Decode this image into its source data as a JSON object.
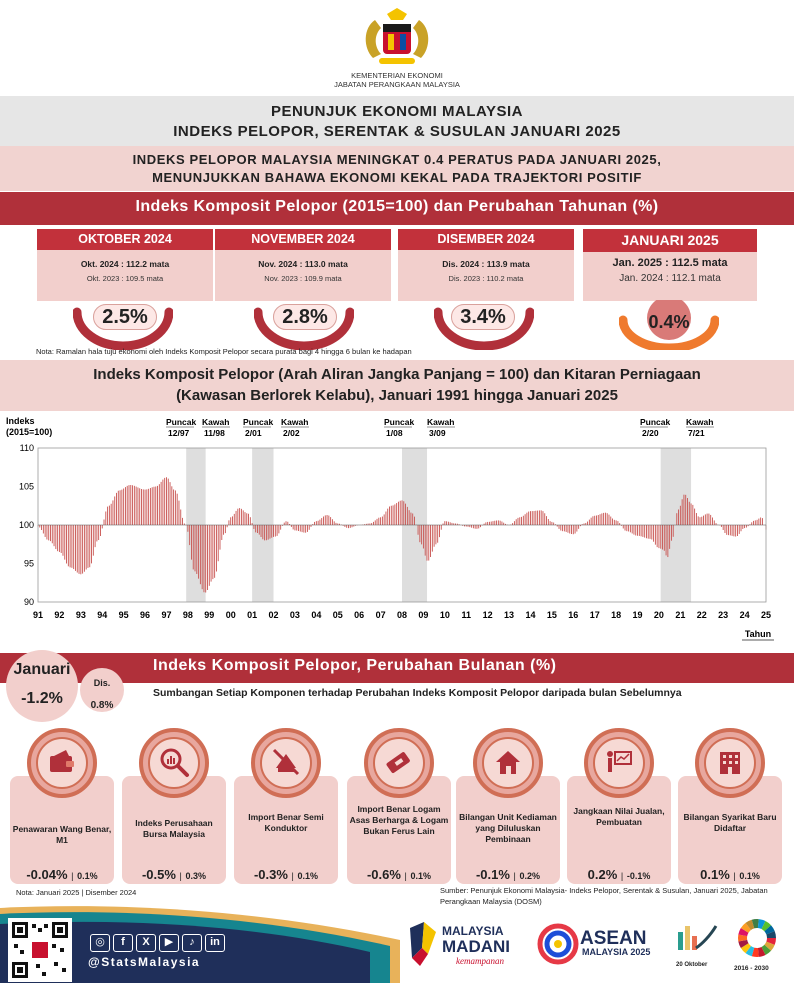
{
  "header": {
    "ministry_line1": "KEMENTERIAN EKONOMI",
    "ministry_line2": "JABATAN PERANGKAAN MALAYSIA",
    "title_line1": "PENUNJUK EKONOMI MALAYSIA",
    "title_line2": "INDEKS PELOPOR, SERENTAK & SUSULAN JANUARI 2025",
    "headline_line1": "INDEKS PELOPOR MALAYSIA MENINGKAT 0.4 PERATUS PADA JANUARI 2025,",
    "headline_line2": "MENUNJUKKAN BAHAWA EKONOMI KEKAL PADA TRAJEKTORI POSITIF",
    "section_title": "Indeks Komposit Pelopor (2015=100) dan Perubahan Tahunan (%)"
  },
  "months": [
    {
      "name": "OKTOBER 2024",
      "line1": "Okt. 2024 : 112.2 mata",
      "line2": "Okt. 2023 : 109.5 mata",
      "pct": "2.5%"
    },
    {
      "name": "NOVEMBER 2024",
      "line1": "Nov. 2024 : 113.0 mata",
      "line2": "Nov. 2023 : 109.9 mata",
      "pct": "2.8%"
    },
    {
      "name": "DISEMBER 2024",
      "line1": "Dis. 2024 : 113.9 mata",
      "line2": "Dis. 2023 : 110.2 mata",
      "pct": "3.4%"
    },
    {
      "name": "JANUARI 2025",
      "line1": "Jan. 2025 : 112.5 mata",
      "line2": "Jan. 2024 : 112.1 mata",
      "pct": "0.4%"
    }
  ],
  "note_forecast": "Nota: Ramalan hala tuju ekonomi oleh Indeks Komposit Pelopor secara purata bagi 4 hingga 6 bulan ke hadapan",
  "chart_title_line1": "Indeks Komposit Pelopor (Arah Aliran Jangka Panjang = 100) dan Kitaran Perniagaan",
  "chart_title_line2": "(Kawasan Berlorek Kelabu), Januari 1991 hingga Januari 2025",
  "chart_data": {
    "type": "bar",
    "ylabel": "Indeks (2015=100)",
    "xlabel": "Tahun",
    "ylim": [
      90,
      110
    ],
    "baseline": 100,
    "yticks": [
      90,
      95,
      100,
      105,
      110
    ],
    "xticks": [
      "91",
      "92",
      "93",
      "94",
      "95",
      "96",
      "97",
      "98",
      "99",
      "00",
      "01",
      "02",
      "03",
      "04",
      "05",
      "06",
      "07",
      "08",
      "09",
      "10",
      "11",
      "12",
      "13",
      "14",
      "15",
      "16",
      "17",
      "18",
      "19",
      "20",
      "21",
      "22",
      "23",
      "24",
      "25"
    ],
    "x_start_year": 1991,
    "x_end_year": 2025,
    "shaded_recessions": [
      [
        1997.92,
        1998.83
      ],
      [
        2001.0,
        2002.0
      ],
      [
        2008.0,
        2009.17
      ],
      [
        2020.08,
        2021.5
      ]
    ],
    "annotations": [
      {
        "label": "Puncak",
        "date": "12/97"
      },
      {
        "label": "Kawah",
        "date": "11/98"
      },
      {
        "label": "Puncak",
        "date": "2/01"
      },
      {
        "label": "Kawah",
        "date": "2/02"
      },
      {
        "label": "Puncak",
        "date": "1/08"
      },
      {
        "label": "Kawah",
        "date": "3/09"
      },
      {
        "label": "Puncak",
        "date": "2/20"
      },
      {
        "label": "Kawah",
        "date": "7/21"
      }
    ],
    "anchors": [
      [
        1991.0,
        99.8
      ],
      [
        1991.5,
        98.0
      ],
      [
        1992.0,
        96.5
      ],
      [
        1992.5,
        94.5
      ],
      [
        1993.0,
        93.6
      ],
      [
        1993.4,
        94.5
      ],
      [
        1993.8,
        98.0
      ],
      [
        1994.3,
        102.5
      ],
      [
        1994.8,
        104.5
      ],
      [
        1995.3,
        105.2
      ],
      [
        1996.0,
        104.6
      ],
      [
        1996.5,
        105.0
      ],
      [
        1997.0,
        106.2
      ],
      [
        1997.4,
        104.5
      ],
      [
        1997.9,
        100.0
      ],
      [
        1998.3,
        94.0
      ],
      [
        1998.8,
        91.2
      ],
      [
        1999.2,
        93.0
      ],
      [
        1999.7,
        98.8
      ],
      [
        2000.0,
        101.0
      ],
      [
        2000.4,
        102.2
      ],
      [
        2000.8,
        101.5
      ],
      [
        2001.2,
        99.0
      ],
      [
        2001.6,
        98.0
      ],
      [
        2002.1,
        98.5
      ],
      [
        2002.6,
        100.5
      ],
      [
        2003.0,
        99.3
      ],
      [
        2003.5,
        99.0
      ],
      [
        2004.0,
        100.5
      ],
      [
        2004.5,
        101.3
      ],
      [
        2005.0,
        100.2
      ],
      [
        2005.5,
        99.6
      ],
      [
        2006.0,
        100.0
      ],
      [
        2006.5,
        100.2
      ],
      [
        2007.0,
        101.0
      ],
      [
        2007.5,
        102.5
      ],
      [
        2008.0,
        103.2
      ],
      [
        2008.5,
        101.5
      ],
      [
        2008.9,
        97.5
      ],
      [
        2009.2,
        95.3
      ],
      [
        2009.6,
        97.5
      ],
      [
        2010.0,
        100.5
      ],
      [
        2010.5,
        100.2
      ],
      [
        2011.0,
        99.8
      ],
      [
        2011.5,
        99.5
      ],
      [
        2012.0,
        100.4
      ],
      [
        2012.5,
        100.6
      ],
      [
        2013.0,
        100.0
      ],
      [
        2013.5,
        101.0
      ],
      [
        2014.0,
        101.8
      ],
      [
        2014.5,
        101.9
      ],
      [
        2015.0,
        100.4
      ],
      [
        2015.5,
        99.2
      ],
      [
        2016.0,
        98.8
      ],
      [
        2016.5,
        100.2
      ],
      [
        2017.0,
        101.2
      ],
      [
        2017.5,
        101.6
      ],
      [
        2018.0,
        100.6
      ],
      [
        2018.5,
        99.2
      ],
      [
        2019.0,
        98.6
      ],
      [
        2019.6,
        98.2
      ],
      [
        2020.0,
        97.0
      ],
      [
        2020.2,
        96.8
      ],
      [
        2020.4,
        95.8
      ],
      [
        2020.6,
        98.0
      ],
      [
        2020.9,
        102.0
      ],
      [
        2021.2,
        104.0
      ],
      [
        2021.5,
        102.8
      ],
      [
        2021.9,
        101.0
      ],
      [
        2022.3,
        101.5
      ],
      [
        2022.8,
        100.0
      ],
      [
        2023.2,
        98.7
      ],
      [
        2023.6,
        98.5
      ],
      [
        2024.0,
        99.6
      ],
      [
        2024.5,
        100.6
      ],
      [
        2024.8,
        101.0
      ],
      [
        2025.0,
        99.4
      ]
    ]
  },
  "monthly": {
    "title": "Indeks Komposit Pelopor, Perubahan Bulanan (%)",
    "subtitle": "Sumbangan Setiap Komponen terhadap Perubahan Indeks Komposit Pelopor daripada bulan Sebelumnya",
    "jan_label": "Januari",
    "jan_value": "-1.2%",
    "dis_label": "Dis.",
    "dis_value": "0.8%",
    "components": [
      {
        "name": "Penawaran Wang Benar, M1",
        "jan": "-0.04%",
        "dis": "0.1%",
        "icon": "wallet-icon"
      },
      {
        "name": "Indeks Perusahaan Bursa Malaysia",
        "jan": "-0.5%",
        "dis": "0.3%",
        "icon": "magnifier-chart-icon"
      },
      {
        "name": "Import Benar Semi Konduktor",
        "jan": "-0.3%",
        "dis": "0.1%",
        "icon": "chip-icon"
      },
      {
        "name": "Import Benar Logam Asas Berharga & Logam Bukan Ferus Lain",
        "jan": "-0.6%",
        "dis": "0.1%",
        "icon": "metal-bar-icon"
      },
      {
        "name": "Bilangan Unit Kediaman yang Diluluskan Pembinaan",
        "jan": "-0.1%",
        "dis": "0.2%",
        "icon": "house-icon"
      },
      {
        "name": "Jangkaan Nilai Jualan, Pembuatan",
        "jan": "0.2%",
        "dis": "-0.1%",
        "icon": "presentation-icon"
      },
      {
        "name": "Bilangan Syarikat Baru Didaftar",
        "jan": "0.1%",
        "dis": "0.1%",
        "icon": "building-icon"
      }
    ],
    "note": "Nota: Januari 2025 | Disember 2024"
  },
  "source": "Sumber: Penunjuk Ekonomi Malaysia- Indeks Pelopor, Serentak & Susulan, Januari 2025, Jabatan Perangkaan Malaysia (DOSM)",
  "footer": {
    "handle": "@StatsMalaysia",
    "madani_line1": "MALAYSIA",
    "madani_line2": "MADANI",
    "madani_line3": "kemampanan",
    "asean_line1": "ASEAN",
    "asean_line2": "MALAYSIA 2025",
    "stats_day": "20 Oktober",
    "sdg_years": "2016 - 2030",
    "colors": {
      "red": "#b0303a",
      "pink": "#f2cfcc",
      "teal": "#16858f",
      "navy": "#1f2f5a"
    }
  }
}
